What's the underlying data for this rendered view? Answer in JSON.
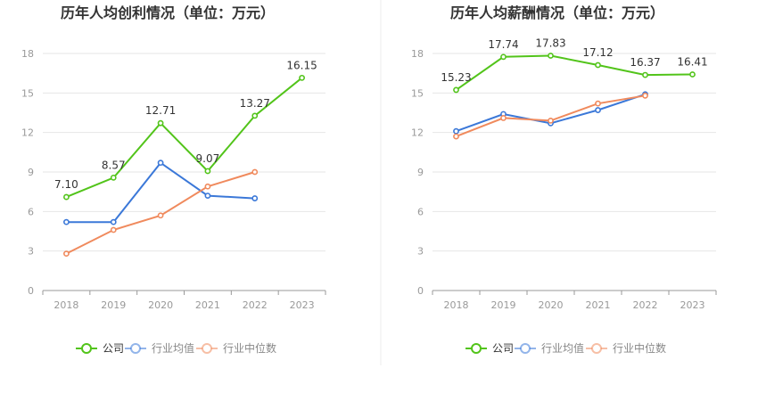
{
  "colors": {
    "company": "#52c41a",
    "industry_avg": "#3b78d8",
    "industry_median": "#f08a5d",
    "grid": "#e6e6e6",
    "axis": "#999999",
    "tick_text": "#999999",
    "title": "#333333",
    "label": "#333333",
    "divider": "#eeeeee"
  },
  "legend": {
    "items": [
      {
        "key": "company",
        "label": "公司"
      },
      {
        "key": "industry_avg",
        "label": "行业均值"
      },
      {
        "key": "industry_median",
        "label": "行业中位数"
      }
    ]
  },
  "chart_data": [
    {
      "type": "line",
      "title": "历年人均创利情况（单位：万元）",
      "categories": [
        "2018",
        "2019",
        "2020",
        "2021",
        "2022",
        "2023"
      ],
      "ylim": [
        0,
        18
      ],
      "yticks": [
        0,
        3,
        6,
        9,
        12,
        15,
        18
      ],
      "grid": true,
      "legend_position": "bottom",
      "series": [
        {
          "key": "company",
          "name": "公司",
          "values": [
            7.1,
            8.57,
            12.71,
            9.07,
            13.27,
            16.15
          ],
          "labels": [
            "7.10",
            "8.57",
            "12.71",
            "9.07",
            "13.27",
            "16.15"
          ]
        },
        {
          "key": "industry_avg",
          "name": "行业均值",
          "values": [
            5.2,
            5.2,
            9.7,
            7.2,
            7.0,
            null
          ]
        },
        {
          "key": "industry_median",
          "name": "行业中位数",
          "values": [
            2.8,
            4.6,
            5.7,
            7.9,
            9.0,
            null
          ]
        }
      ]
    },
    {
      "type": "line",
      "title": "历年人均薪酬情况（单位：万元）",
      "categories": [
        "2018",
        "2019",
        "2020",
        "2021",
        "2022",
        "2023"
      ],
      "ylim": [
        0,
        18
      ],
      "yticks": [
        0,
        3,
        6,
        9,
        12,
        15,
        18
      ],
      "grid": true,
      "legend_position": "bottom",
      "series": [
        {
          "key": "company",
          "name": "公司",
          "values": [
            15.23,
            17.74,
            17.83,
            17.12,
            16.37,
            16.41
          ],
          "labels": [
            "15.23",
            "17.74",
            "17.83",
            "17.12",
            "16.37",
            "16.41"
          ]
        },
        {
          "key": "industry_avg",
          "name": "行业均值",
          "values": [
            12.1,
            13.4,
            12.7,
            13.7,
            14.9,
            null
          ]
        },
        {
          "key": "industry_median",
          "name": "行业中位数",
          "values": [
            11.7,
            13.1,
            12.9,
            14.2,
            14.8,
            null
          ]
        }
      ]
    }
  ]
}
